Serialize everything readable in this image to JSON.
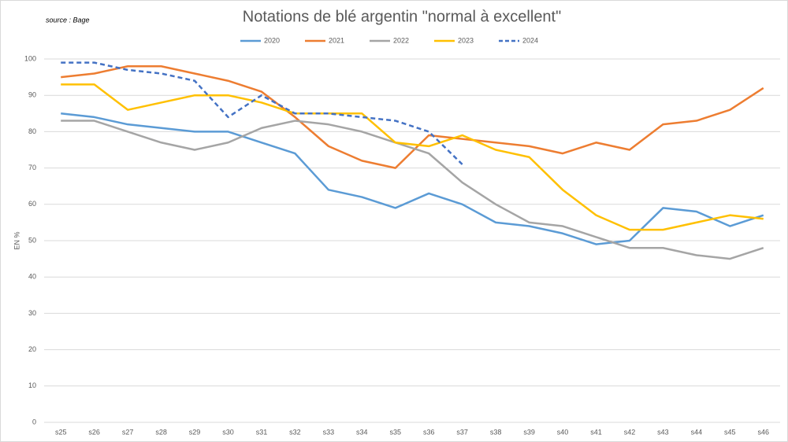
{
  "chart_data": {
    "type": "line",
    "title": "Notations de blé argentin \"normal à excellent\"",
    "source": "source : Bage",
    "ylabel": "EN %",
    "categories": [
      "s25",
      "s26",
      "s27",
      "s28",
      "s29",
      "s30",
      "s31",
      "s32",
      "s33",
      "s34",
      "s35",
      "s36",
      "s37",
      "s38",
      "s39",
      "s40",
      "s41",
      "s42",
      "s43",
      "s44",
      "s45",
      "s46"
    ],
    "series": [
      {
        "name": "2020",
        "color": "#5b9bd5",
        "dash": false,
        "values": [
          85,
          84,
          82,
          81,
          80,
          80,
          77,
          74,
          64,
          62,
          59,
          63,
          60,
          55,
          54,
          52,
          49,
          50,
          59,
          58,
          54,
          57
        ]
      },
      {
        "name": "2021",
        "color": "#ed7d31",
        "dash": false,
        "values": [
          95,
          96,
          98,
          98,
          96,
          94,
          91,
          84,
          76,
          72,
          70,
          79,
          78,
          77,
          76,
          74,
          77,
          75,
          82,
          83,
          86,
          92
        ]
      },
      {
        "name": "2022",
        "color": "#a5a5a5",
        "dash": false,
        "values": [
          83,
          83,
          80,
          77,
          75,
          77,
          81,
          83,
          82,
          80,
          77,
          74,
          66,
          60,
          55,
          54,
          51,
          48,
          48,
          46,
          45,
          48
        ]
      },
      {
        "name": "2023",
        "color": "#ffc000",
        "dash": false,
        "values": [
          93,
          93,
          86,
          88,
          90,
          90,
          88,
          85,
          85,
          85,
          77,
          76,
          79,
          75,
          73,
          64,
          57,
          53,
          53,
          55,
          57,
          56
        ]
      },
      {
        "name": "2024",
        "color": "#4472c4",
        "dash": true,
        "values": [
          99,
          99,
          97,
          96,
          94,
          84,
          90,
          85,
          85,
          84,
          83,
          80,
          71,
          null,
          null,
          null,
          null,
          null,
          null,
          null,
          null,
          null
        ]
      }
    ],
    "ylim": [
      0,
      100
    ],
    "yticks": [
      0,
      10,
      20,
      30,
      40,
      50,
      60,
      70,
      80,
      90,
      100
    ],
    "grid": true,
    "legend": "top"
  }
}
